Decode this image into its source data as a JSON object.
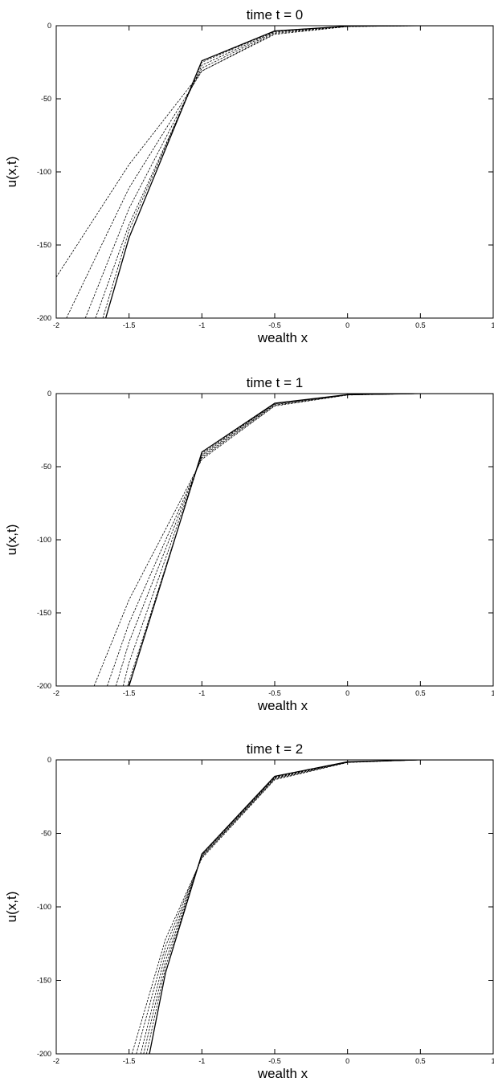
{
  "chart_data": [
    {
      "type": "line",
      "title": "time t = 0",
      "xlabel": "wealth x",
      "ylabel": "u(x,t)",
      "xlim": [
        -2,
        1
      ],
      "ylim": [
        -200,
        0
      ],
      "xticks": [
        -2,
        -1.5,
        -1,
        -0.5,
        0,
        0.5,
        1
      ],
      "xtick_labels": [
        "-2",
        "-1.5",
        "-1",
        "-0.5",
        "0",
        "0.5",
        "1"
      ],
      "yticks": [
        0,
        -50,
        -100,
        -150,
        -200
      ],
      "ytick_labels": [
        "0",
        "-50",
        "-100",
        "-150",
        "-200"
      ],
      "grid": false,
      "series": [
        {
          "style": "dashed",
          "x": [
            -2.0,
            -1.5,
            -1.0,
            -0.5,
            0.0,
            0.5,
            1.0
          ],
          "y": [
            -172,
            -95,
            -31,
            -5.9,
            -0.6,
            0,
            0
          ]
        },
        {
          "style": "dashed",
          "x": [
            -1.93,
            -1.5,
            -1.0,
            -0.5,
            0.0,
            0.5,
            1.0
          ],
          "y": [
            -200,
            -111,
            -31,
            -5.2,
            -0.5,
            0,
            0
          ]
        },
        {
          "style": "dashed",
          "x": [
            -1.8,
            -1.5,
            -1.0,
            -0.5,
            0.0,
            0.5,
            1.0
          ],
          "y": [
            -200,
            -125,
            -29,
            -4.5,
            -0.4,
            0,
            0
          ]
        },
        {
          "style": "dashed",
          "x": [
            -1.73,
            -1.5,
            -1.0,
            -0.5,
            0.0,
            0.5,
            1.0
          ],
          "y": [
            -200,
            -136,
            -27,
            -4.0,
            -0.3,
            0,
            0
          ]
        },
        {
          "style": "dashed",
          "x": [
            -1.68,
            -1.5,
            -1.0,
            -0.5,
            0.0,
            0.5,
            1.0
          ],
          "y": [
            -200,
            -140,
            -25,
            -3.7,
            -0.3,
            0,
            0
          ]
        },
        {
          "style": "solid",
          "x": [
            -1.66,
            -1.5,
            -1.0,
            -0.5,
            0.0,
            0.5,
            1.0
          ],
          "y": [
            -200,
            -145,
            -24,
            -3.6,
            -0.3,
            0,
            0
          ]
        }
      ]
    },
    {
      "type": "line",
      "title": "time t = 1",
      "xlabel": "wealth x",
      "ylabel": "u(x,t)",
      "xlim": [
        -2,
        1
      ],
      "ylim": [
        -200,
        0
      ],
      "xticks": [
        -2,
        -1.5,
        -1,
        -0.5,
        0,
        0.5,
        1
      ],
      "xtick_labels": [
        "-2",
        "-1.5",
        "-1",
        "-0.5",
        "0",
        "0.5",
        "1"
      ],
      "yticks": [
        0,
        -50,
        -100,
        -150,
        -200
      ],
      "ytick_labels": [
        "0",
        "-50",
        "-100",
        "-150",
        "-200"
      ],
      "grid": false,
      "series": [
        {
          "style": "dashed",
          "x": [
            -1.74,
            -1.5,
            -1.0,
            -0.5,
            0.0,
            0.5,
            1.0
          ],
          "y": [
            -200,
            -141,
            -45,
            -8.5,
            -1.0,
            0,
            0
          ]
        },
        {
          "style": "dashed",
          "x": [
            -1.65,
            -1.5,
            -1.0,
            -0.5,
            0.0,
            0.5,
            1.0
          ],
          "y": [
            -200,
            -157,
            -44,
            -8.0,
            -0.9,
            0,
            0
          ]
        },
        {
          "style": "dashed",
          "x": [
            -1.59,
            -1.5,
            -1.0,
            -0.5,
            0.0,
            0.5,
            1.0
          ],
          "y": [
            -200,
            -170,
            -43,
            -7.5,
            -0.8,
            0,
            0
          ]
        },
        {
          "style": "dashed",
          "x": [
            -1.54,
            -1.5,
            -1.0,
            -0.5,
            0.0,
            0.5,
            1.0
          ],
          "y": [
            -200,
            -184,
            -42,
            -7.0,
            -0.8,
            0,
            0
          ]
        },
        {
          "style": "dashed",
          "x": [
            -1.51,
            -1.0,
            -0.5,
            0.0,
            0.5,
            1.0
          ],
          "y": [
            -200,
            -41,
            -6.8,
            -0.7,
            0,
            0
          ]
        },
        {
          "style": "solid",
          "x": [
            -1.5,
            -1.0,
            -0.5,
            0.0,
            0.5,
            1.0
          ],
          "y": [
            -200,
            -40,
            -6.6,
            -0.7,
            0,
            0
          ]
        }
      ]
    },
    {
      "type": "line",
      "title": "time t = 2",
      "xlabel": "wealth x",
      "ylabel": "u(x,t)",
      "xlim": [
        -2,
        1
      ],
      "ylim": [
        -200,
        0
      ],
      "xticks": [
        -2,
        -1.5,
        -1,
        -0.5,
        0,
        0.5,
        1
      ],
      "xtick_labels": [
        "-2",
        "-1.5",
        "-1",
        "-0.5",
        "0",
        "0.5",
        "1"
      ],
      "yticks": [
        0,
        -50,
        -100,
        -150,
        -200
      ],
      "ytick_labels": [
        "0",
        "-50",
        "-100",
        "-150",
        "-200"
      ],
      "grid": false,
      "series": [
        {
          "style": "dashed",
          "x": [
            -1.48,
            -1.25,
            -1.0,
            -0.5,
            0.0,
            0.5,
            1.0
          ],
          "y": [
            -200,
            -122,
            -67,
            -13.5,
            -1.8,
            0,
            0
          ]
        },
        {
          "style": "dashed",
          "x": [
            -1.45,
            -1.25,
            -1.0,
            -0.5,
            0.0,
            0.5,
            1.0
          ],
          "y": [
            -200,
            -127,
            -66,
            -13,
            -1.7,
            0,
            0
          ]
        },
        {
          "style": "dashed",
          "x": [
            -1.42,
            -1.25,
            -1.0,
            -0.5,
            0.0,
            0.5,
            1.0
          ],
          "y": [
            -200,
            -132,
            -66,
            -12.5,
            -1.6,
            0,
            0
          ]
        },
        {
          "style": "dashed",
          "x": [
            -1.4,
            -1.25,
            -1.0,
            -0.5,
            0.0,
            0.5,
            1.0
          ],
          "y": [
            -200,
            -137,
            -65,
            -12,
            -1.5,
            0,
            0
          ]
        },
        {
          "style": "dashed",
          "x": [
            -1.38,
            -1.25,
            -1.0,
            -0.5,
            0.0,
            0.5,
            1.0
          ],
          "y": [
            -200,
            -141,
            -65,
            -11.6,
            -1.4,
            0,
            0
          ]
        },
        {
          "style": "solid",
          "x": [
            -1.36,
            -1.25,
            -1.0,
            -0.5,
            0.0,
            0.5,
            1.0
          ],
          "y": [
            -200,
            -145,
            -64,
            -11.2,
            -1.3,
            0,
            0
          ]
        }
      ]
    }
  ]
}
